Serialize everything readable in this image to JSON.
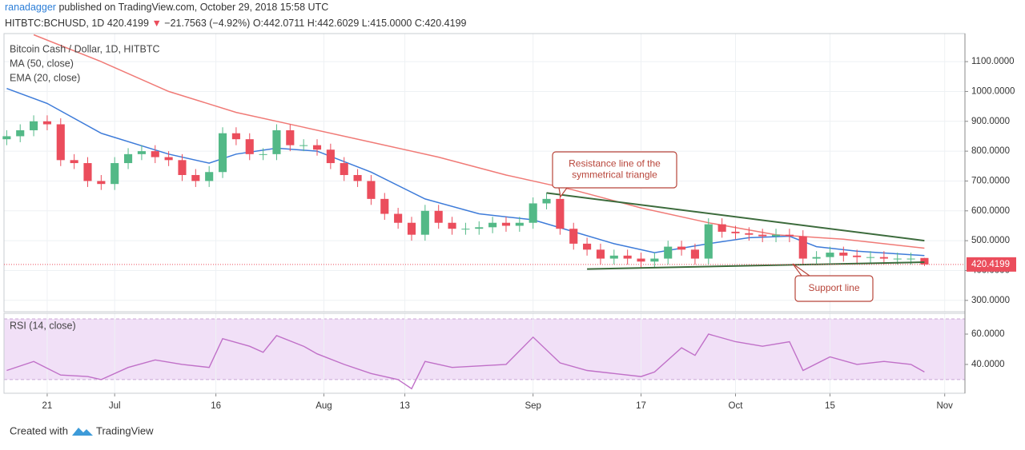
{
  "header": {
    "author": "ranadagger",
    "published": "published on TradingView.com, October 29, 2018 15:58 UTC",
    "symbol": "HITBTC:BCHUSD, 1D",
    "price": "420.4199",
    "arrow": "▼",
    "change": "−21.7563 (−4.92%)",
    "ohlc": "O:442.0711 H:442.6029 L:415.0000 C:420.4199"
  },
  "footer": {
    "created": "Created with",
    "brand": "TradingView"
  },
  "chart_data": {
    "type": "candlestick",
    "title": "Bitcoin Cash / Dollar, 1D, HITBTC",
    "up_color": "#53b987",
    "down_color": "#eb4d5c",
    "grid": true,
    "xlim": [
      165.6,
      308
    ],
    "xticks": [
      {
        "value": 172,
        "label": "21"
      },
      {
        "value": 182,
        "label": "Jul"
      },
      {
        "value": 197,
        "label": "16"
      },
      {
        "value": 213,
        "label": "Aug"
      },
      {
        "value": 225,
        "label": "13"
      },
      {
        "value": 244,
        "label": "Sep"
      },
      {
        "value": 260,
        "label": "17"
      },
      {
        "value": 274,
        "label": "Oct"
      },
      {
        "value": 288,
        "label": "15"
      },
      {
        "value": 305,
        "label": "Nov"
      }
    ],
    "ylim": [
      262,
      1194
    ],
    "yticks": [
      {
        "value": 300,
        "label": "300.0000"
      },
      {
        "value": 400,
        "label": "400.0000"
      },
      {
        "value": 500,
        "label": "500.0000"
      },
      {
        "value": 600,
        "label": "600.0000"
      },
      {
        "value": 700,
        "label": "700.0000"
      },
      {
        "value": 800,
        "label": "800.0000"
      },
      {
        "value": 900,
        "label": "900.0000"
      },
      {
        "value": 1000,
        "label": "1000.0000"
      },
      {
        "value": 1100,
        "label": "1100.0000"
      }
    ],
    "last_price": 420.4199,
    "last_color": "#eb4d5c",
    "x": [
      166,
      168,
      170,
      172,
      174,
      176,
      178,
      180,
      182,
      184,
      186,
      188,
      190,
      192,
      194,
      196,
      198,
      200,
      202,
      204,
      206,
      208,
      210,
      212,
      214,
      216,
      218,
      220,
      222,
      224,
      226,
      228,
      230,
      232,
      234,
      236,
      238,
      240,
      242,
      244,
      246,
      248,
      250,
      252,
      254,
      256,
      258,
      260,
      262,
      264,
      266,
      268,
      270,
      272,
      274,
      276,
      278,
      280,
      282,
      284,
      286,
      288,
      290,
      292,
      294,
      296,
      298,
      300,
      302
    ],
    "open": [
      840,
      850,
      870,
      900,
      890,
      770,
      760,
      700,
      690,
      760,
      790,
      800,
      780,
      770,
      720,
      700,
      730,
      860,
      840,
      790,
      790,
      870,
      820,
      820,
      805,
      760,
      720,
      700,
      640,
      590,
      560,
      520,
      600,
      560,
      540,
      540,
      545,
      560,
      550,
      560,
      625,
      640,
      540,
      490,
      470,
      440,
      450,
      440,
      430,
      440,
      480,
      470,
      440,
      555,
      530,
      525,
      520,
      515,
      520,
      515,
      440,
      445,
      460,
      450,
      445,
      445,
      440,
      440,
      442.0711
    ],
    "high": [
      870,
      890,
      920,
      920,
      910,
      790,
      780,
      720,
      780,
      810,
      820,
      820,
      800,
      790,
      740,
      750,
      880,
      880,
      860,
      810,
      890,
      890,
      840,
      840,
      825,
      780,
      740,
      720,
      660,
      610,
      580,
      620,
      620,
      580,
      560,
      565,
      580,
      580,
      580,
      645,
      660,
      660,
      560,
      510,
      490,
      470,
      470,
      460,
      460,
      500,
      500,
      490,
      575,
      575,
      550,
      545,
      540,
      540,
      540,
      535,
      465,
      480,
      480,
      470,
      465,
      465,
      460,
      460,
      442.6029
    ],
    "low": [
      820,
      830,
      850,
      870,
      750,
      740,
      680,
      670,
      670,
      740,
      770,
      760,
      750,
      700,
      680,
      680,
      710,
      820,
      770,
      770,
      770,
      800,
      800,
      785,
      740,
      700,
      680,
      620,
      570,
      540,
      500,
      500,
      540,
      520,
      520,
      520,
      525,
      530,
      530,
      540,
      605,
      520,
      470,
      450,
      420,
      420,
      420,
      410,
      410,
      420,
      450,
      420,
      420,
      510,
      505,
      500,
      495,
      495,
      495,
      420,
      420,
      425,
      430,
      425,
      425,
      420,
      420,
      420,
      415
    ],
    "close": [
      850,
      870,
      900,
      890,
      770,
      760,
      700,
      690,
      760,
      790,
      800,
      780,
      770,
      720,
      700,
      730,
      860,
      840,
      790,
      790,
      870,
      820,
      820,
      805,
      760,
      720,
      700,
      640,
      590,
      560,
      520,
      600,
      560,
      540,
      540,
      545,
      560,
      550,
      560,
      625,
      640,
      540,
      490,
      470,
      440,
      450,
      440,
      430,
      440,
      480,
      470,
      440,
      555,
      530,
      525,
      520,
      515,
      520,
      515,
      440,
      445,
      460,
      450,
      445,
      445,
      440,
      440,
      440,
      420.4199
    ],
    "series": [
      {
        "name": "MA (50, close)",
        "color": "#f07a76",
        "x": [
          170,
          180,
          190,
          200,
          210,
          220,
          230,
          240,
          250,
          260,
          270,
          280,
          290,
          302
        ],
        "values": [
          1190,
          1100,
          1000,
          930,
          880,
          830,
          780,
          720,
          670,
          610,
          560,
          520,
          505,
          475
        ]
      },
      {
        "name": "EMA (20, close)",
        "color": "#3d7bd9",
        "x": [
          166,
          172,
          180,
          190,
          196,
          200,
          206,
          212,
          220,
          228,
          236,
          244,
          250,
          256,
          262,
          270,
          276,
          282,
          286,
          292,
          302
        ],
        "values": [
          1010,
          960,
          860,
          790,
          760,
          790,
          810,
          800,
          730,
          640,
          590,
          570,
          530,
          490,
          460,
          490,
          510,
          515,
          480,
          465,
          450
        ]
      }
    ],
    "trendlines": [
      {
        "color": "#3c6b3c",
        "x": [
          246,
          302
        ],
        "values": [
          660,
          500
        ]
      },
      {
        "color": "#3c6b3c",
        "x": [
          252,
          302
        ],
        "values": [
          405,
          428
        ]
      }
    ],
    "annotations": [
      {
        "text": [
          "Resistance line of the",
          "symmetrical triangle"
        ],
        "color": "#b8453a"
      },
      {
        "text": [
          "Support line"
        ],
        "color": "#b8453a"
      }
    ],
    "rsi": {
      "title": "RSI (14, close)",
      "color": "#c070c8",
      "band": [
        30,
        70
      ],
      "ylim": [
        21,
        73.7
      ],
      "yticks": [
        {
          "value": 40,
          "label": "40.0000"
        },
        {
          "value": 60,
          "label": "60.0000"
        }
      ],
      "x": [
        166,
        170,
        174,
        178,
        180,
        184,
        188,
        192,
        196,
        198,
        202,
        204,
        206,
        210,
        212,
        216,
        220,
        224,
        226,
        228,
        232,
        240,
        244,
        248,
        252,
        256,
        260,
        262,
        266,
        268,
        270,
        274,
        278,
        282,
        284,
        288,
        292,
        296,
        300,
        302
      ],
      "values": [
        36,
        42,
        33,
        32,
        30,
        38,
        43,
        40,
        38,
        57,
        52,
        48,
        59,
        52,
        47,
        40,
        34,
        30,
        24,
        42,
        38,
        40,
        58,
        41,
        36,
        34,
        32,
        35,
        51,
        46,
        60,
        55,
        52,
        55,
        36,
        45,
        40,
        42,
        40,
        35
      ]
    }
  }
}
